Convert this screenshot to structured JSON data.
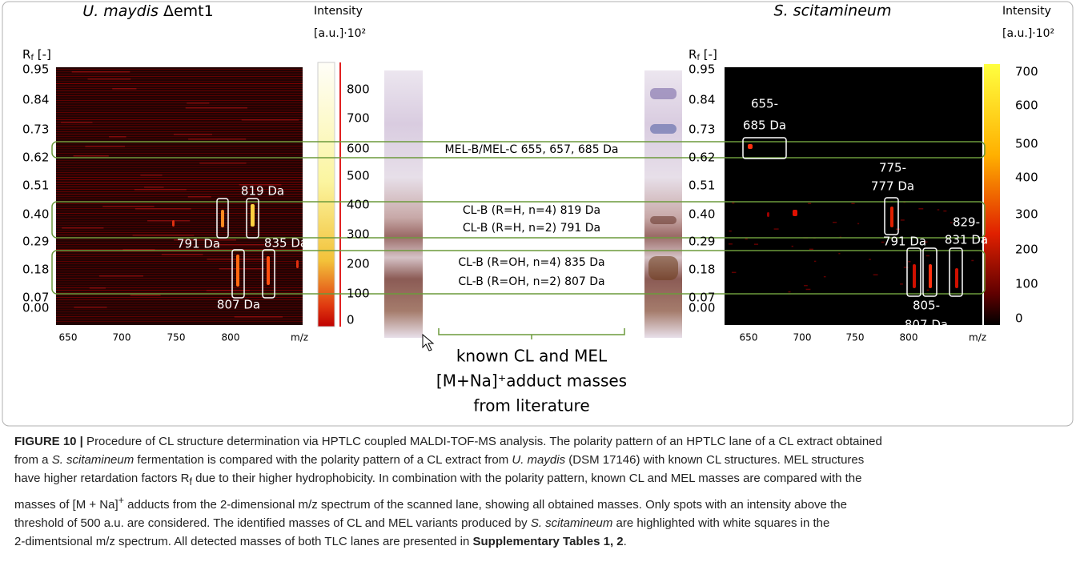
{
  "left_panel": {
    "title_italic": "U. maydis",
    "title_rest": " Δemt1",
    "rf_label": "R",
    "rf_sub": "f",
    "rf_unit": " [-]",
    "y_ticks": [
      "0.95",
      "0.84",
      "0.73",
      "0.62",
      "0.51",
      "0.40",
      "0.29",
      "0.18",
      "0.07",
      "0.00"
    ],
    "x_ticks": [
      "650",
      "700",
      "750",
      "800"
    ],
    "x_unit": "m/z",
    "colorbar_title": "Intensity",
    "colorbar_unit": "[a.u.]·10²",
    "colorbar_ticks": [
      "800",
      "700",
      "600",
      "500",
      "400",
      "300",
      "200",
      "100",
      "0"
    ],
    "annotations": [
      "819 Da",
      "791 Da",
      "835 Da",
      "807 Da"
    ]
  },
  "right_panel": {
    "title_italic": "S. scitamineum",
    "rf_label": "R",
    "rf_sub": "f",
    "rf_unit": " [-]",
    "y_ticks": [
      "0.95",
      "0.84",
      "0.73",
      "0.62",
      "0.51",
      "0.40",
      "0.29",
      "0.18",
      "0.07",
      "0.00"
    ],
    "x_ticks": [
      "650",
      "700",
      "750",
      "800"
    ],
    "x_unit": "m/z",
    "colorbar_title": "Intensity",
    "colorbar_unit": "[a.u.]·10²",
    "colorbar_ticks": [
      "700",
      "600",
      "500",
      "400",
      "300",
      "200",
      "100",
      "0"
    ],
    "annotations": [
      "655-",
      "685 Da",
      "775-",
      "777 Da",
      "791 Da",
      "829-",
      "831 Da",
      "805-",
      "807 Da"
    ]
  },
  "bands": [
    "MEL-B/MEL-C 655, 657, 685 Da",
    "CL-B (R=H, n=4) 819 Da",
    "CL-B (R=H, n=2) 791 Da",
    "CL-B (R=OH, n=4) 835 Da",
    "CL-B (R=OH, n=2) 807 Da"
  ],
  "literature_note": [
    "known CL and MEL",
    "[M+Na]⁺adduct masses",
    "from literature"
  ],
  "caption": [
    "FIGURE 10 |",
    " Procedure of CL structure determination via HPTLC coupled MALDI-TOF-MS analysis. The polarity pattern of an HPTLC lane of a CL extract obtained",
    "from a ",
    "S. scitamineum",
    " fermentation is compared with the polarity pattern of a CL extract from ",
    "U. maydis",
    " (DSM 17146) with known CL structures. MEL structures",
    "have higher retardation factors R",
    "f",
    " due to their higher hydrophobicity. In combination with the polarity pattern, known CL and MEL masses are compared with the",
    "masses of [M + Na]",
    "+",
    " adducts from the 2-dimensional m/z spectrum of the scanned lane, showing all obtained masses. Only spots with an intensity above the",
    "threshold of 500 a.u. are considered. The identified masses of CL and MEL variants produced by ",
    "S. scitamineum",
    " are highlighted with white squares in the",
    "2-dimentsional m/z spectrum. All detected masses of both TLC lanes are presented in ",
    "Supplementary Tables 1, 2",
    "."
  ]
}
